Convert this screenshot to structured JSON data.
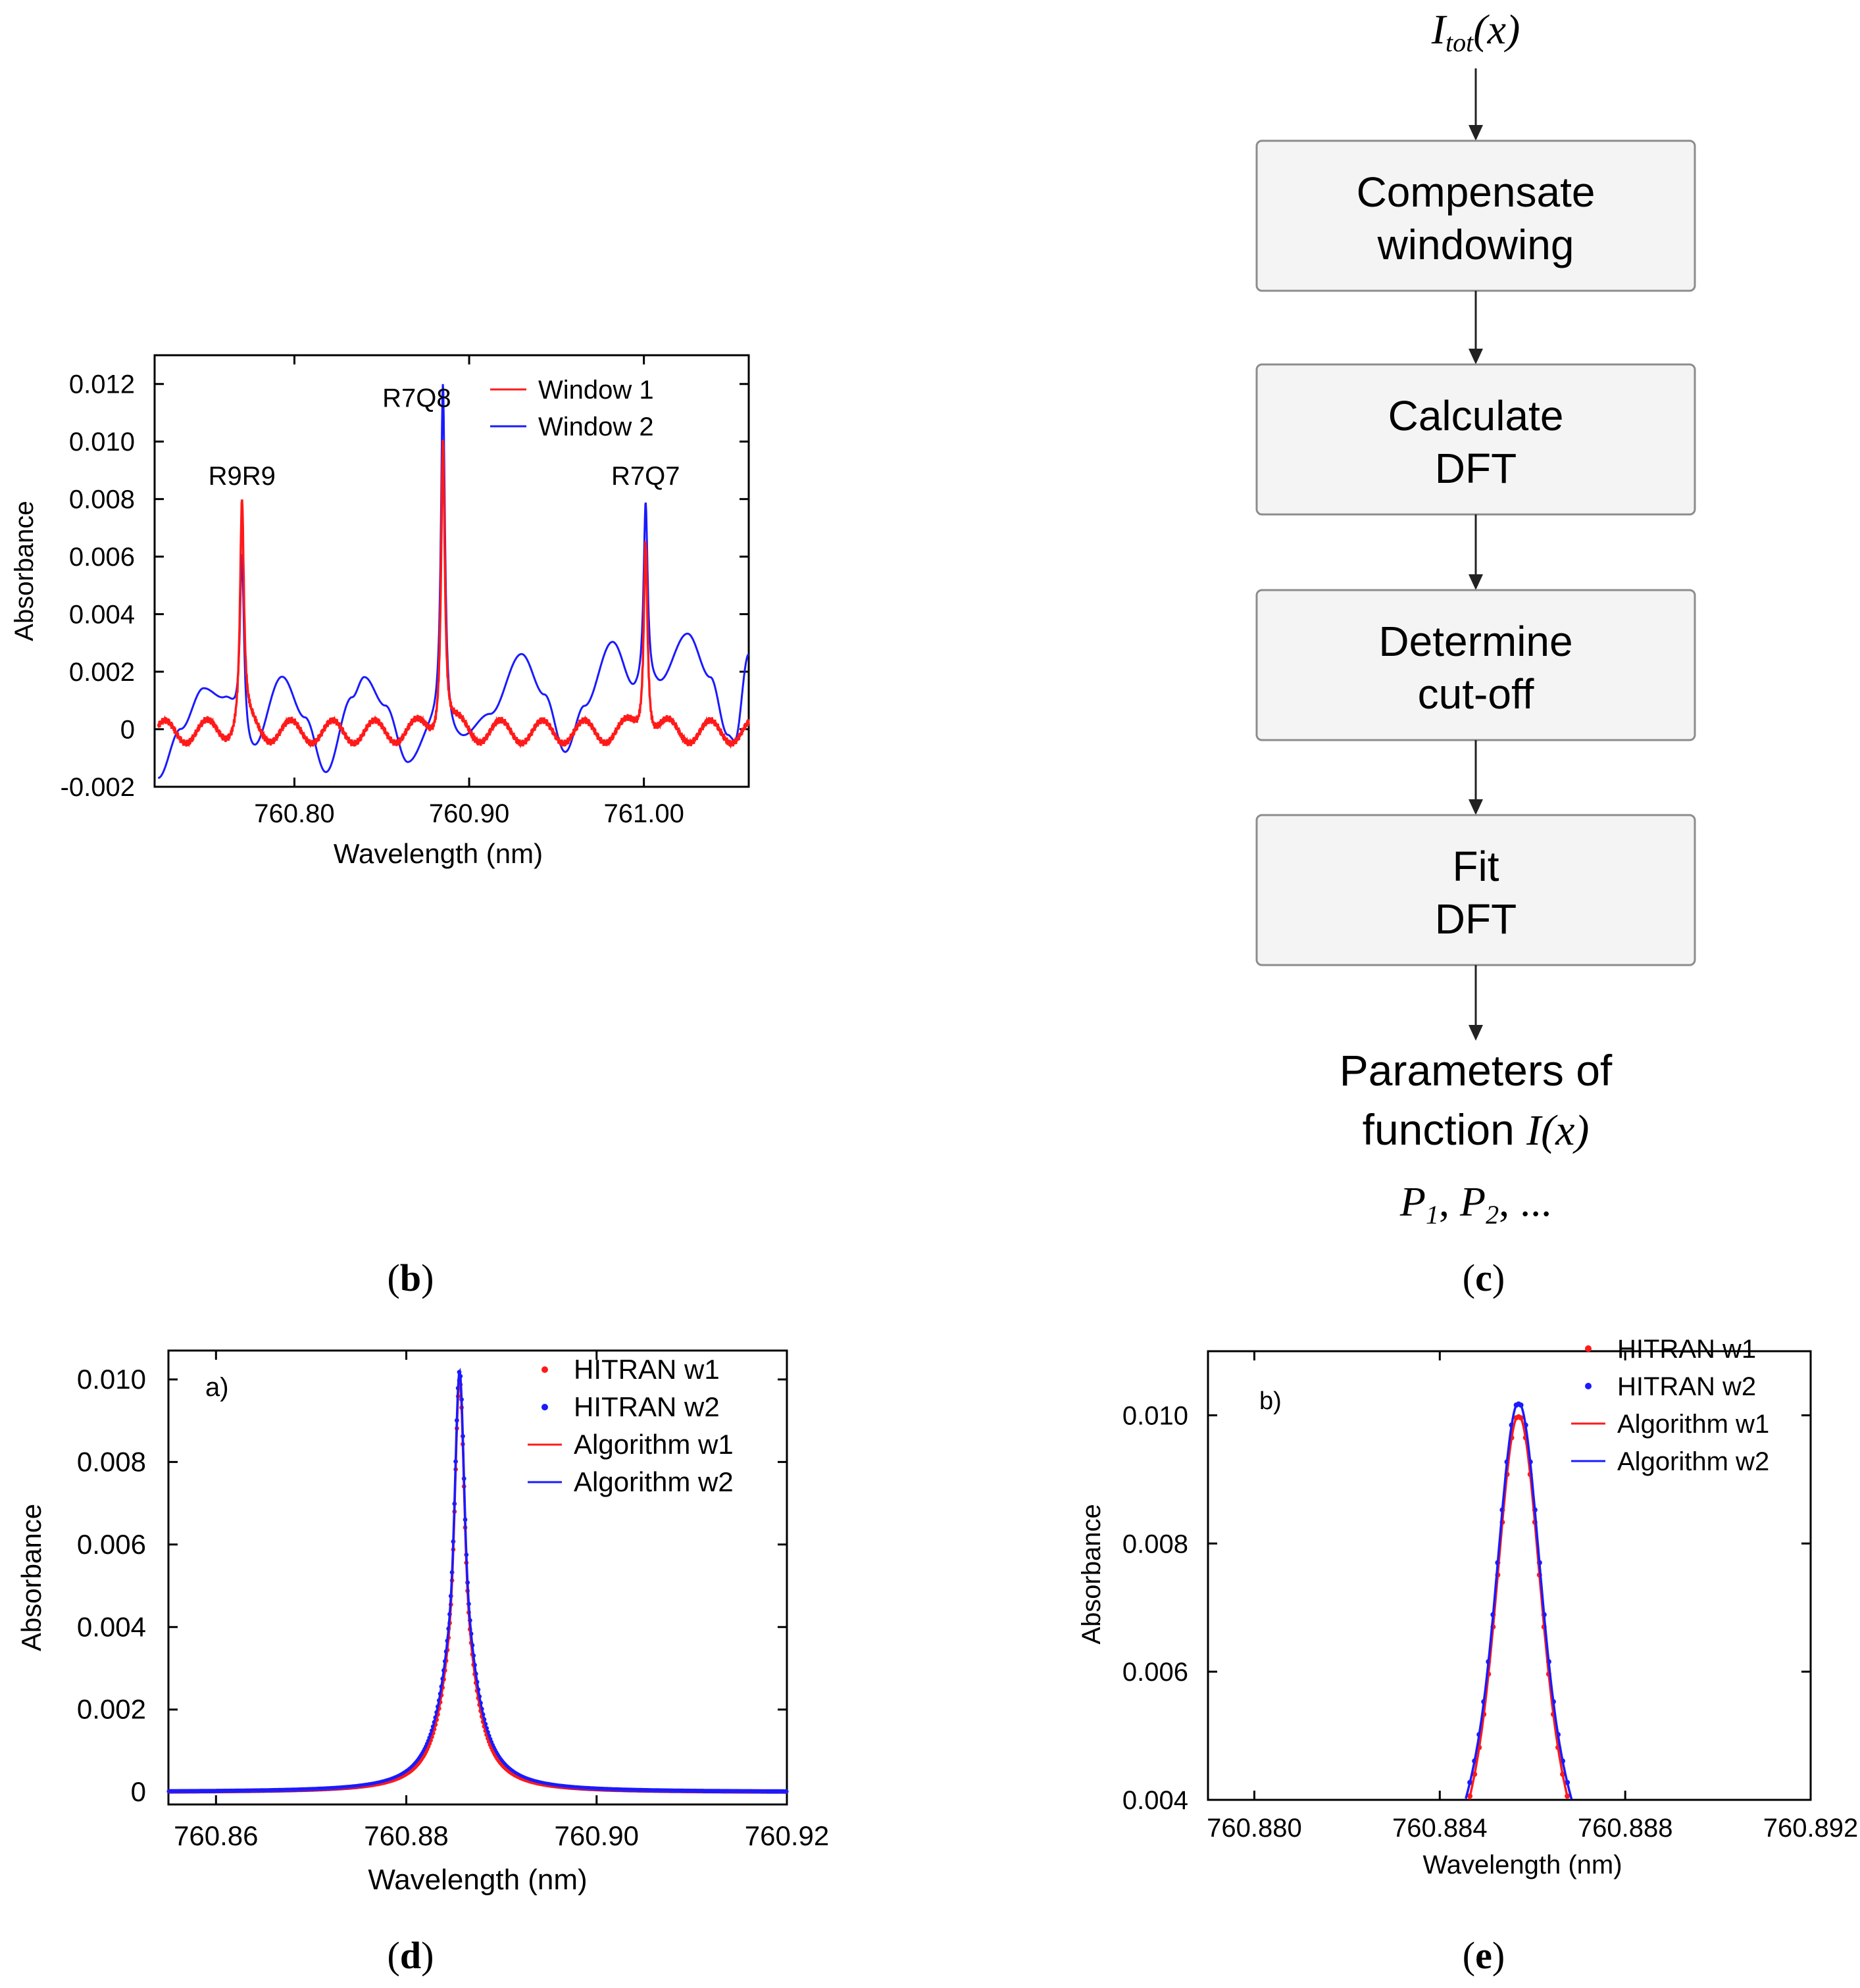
{
  "colors": {
    "red": "#ff1a1a",
    "blue": "#1a1aff",
    "axis": "#000000",
    "box_border": "#8c8c8c",
    "box_fill": "#f4f4f4"
  },
  "captions": {
    "b": "b",
    "c": "c",
    "d": "d",
    "e": "e"
  },
  "chart_data": [
    {
      "id": "b",
      "type": "line",
      "xlabel": "Wavelength (nm)",
      "ylabel": "Absorbance",
      "xlim": [
        760.72,
        761.06
      ],
      "ylim": [
        -0.002,
        0.013
      ],
      "x_ticks": [
        760.8,
        760.9,
        761.0
      ],
      "x_tick_labels": [
        "760.80",
        "760.90",
        "761.00"
      ],
      "y_ticks": [
        -0.002,
        0,
        0.002,
        0.004,
        0.006,
        0.008,
        0.01,
        0.012
      ],
      "y_tick_labels": [
        "-0.002",
        "0",
        "0.002",
        "0.004",
        "0.006",
        "0.008",
        "0.010",
        "0.012"
      ],
      "legend": [
        "Window 1",
        "Window 2"
      ],
      "legend_position": "top-right",
      "annotations": [
        {
          "text": "R9R9",
          "x": 760.77,
          "y": 0.0085
        },
        {
          "text": "R7Q8",
          "x": 760.87,
          "y": 0.0112
        },
        {
          "text": "R7Q7",
          "x": 761.001,
          "y": 0.0085
        }
      ],
      "peaks": [
        {
          "x": 760.77,
          "window1": 0.0078,
          "window2": 0.0061
        },
        {
          "x": 760.885,
          "window1": 0.0103,
          "window2": 0.012
        },
        {
          "x": 761.001,
          "window1": 0.0069,
          "window2": 0.0079
        }
      ],
      "series": [
        {
          "name": "Window 1",
          "color": "red",
          "baseline_oscillation": {
            "amplitude": 0.0004,
            "period_nm": 0.024,
            "offset": -0.0001
          }
        },
        {
          "name": "Window 2",
          "color": "blue",
          "baseline_points": [
            [
              760.722,
              -0.0017
            ],
            [
              760.735,
              0.0
            ],
            [
              760.748,
              0.0014
            ],
            [
              760.76,
              0.001
            ],
            [
              760.776,
              -0.0008
            ],
            [
              760.793,
              0.0018
            ],
            [
              760.806,
              0.0004
            ],
            [
              760.818,
              -0.0015
            ],
            [
              760.833,
              0.0011
            ],
            [
              760.84,
              0.0018
            ],
            [
              760.852,
              0.0008
            ],
            [
              760.865,
              -0.0012
            ],
            [
              760.88,
              0.0
            ],
            [
              760.895,
              -0.0004
            ],
            [
              760.912,
              0.0005
            ],
            [
              760.93,
              0.0026
            ],
            [
              760.943,
              0.0012
            ],
            [
              760.955,
              -0.0008
            ],
            [
              760.966,
              0.0008
            ],
            [
              760.982,
              0.003
            ],
            [
              760.995,
              0.0013
            ],
            [
              761.008,
              0.0015
            ],
            [
              761.025,
              0.0033
            ],
            [
              761.038,
              0.0018
            ],
            [
              761.048,
              -0.0002
            ],
            [
              761.052,
              -0.0004
            ],
            [
              761.06,
              0.0026
            ]
          ]
        }
      ]
    },
    {
      "id": "c",
      "type": "flowchart",
      "input_label": "I",
      "input_sub": "tot",
      "input_arg": "(x)",
      "steps": [
        {
          "line1": "Compensate",
          "line2": "windowing"
        },
        {
          "line1": "Calculate",
          "line2": "DFT"
        },
        {
          "line1": "Determine",
          "line2": "cut-off"
        },
        {
          "line1": "Fit",
          "line2": "DFT"
        }
      ],
      "output": {
        "line1": "Parameters of",
        "line2_text": "function ",
        "line2_math": "I(x)",
        "p": "P",
        "sub1": "1",
        "sub2": "2",
        "comma": ", ",
        "ellipsis": ", ..."
      }
    },
    {
      "id": "d",
      "type": "line",
      "panel_label": "a)",
      "xlabel": "Wavelength (nm)",
      "ylabel": "Absorbance",
      "xlim": [
        760.855,
        760.92
      ],
      "ylim": [
        -0.0003,
        0.0107
      ],
      "x_ticks": [
        760.86,
        760.88,
        760.9,
        760.92
      ],
      "x_tick_labels": [
        "760.86",
        "760.88",
        "760.90",
        "760.92"
      ],
      "y_ticks": [
        0,
        0.002,
        0.004,
        0.006,
        0.008,
        0.01
      ],
      "y_tick_labels": [
        "0",
        "0.002",
        "0.004",
        "0.006",
        "0.008",
        "0.010"
      ],
      "legend": [
        "HITRAN w1",
        "HITRAN w2",
        "Algorithm w1",
        "Algorithm w2"
      ],
      "legend_position": "top-right",
      "series": [
        {
          "name": "HITRAN w1",
          "style": "dots",
          "color": "red",
          "center": 760.8856,
          "peak": 0.01,
          "hwhm": 0.00165,
          "gauss_sigma": 0.0004
        },
        {
          "name": "HITRAN w2",
          "style": "dots",
          "color": "blue",
          "center": 760.8856,
          "peak": 0.0102,
          "hwhm": 0.00175,
          "gauss_sigma": 0.0004
        },
        {
          "name": "Algorithm w1",
          "style": "line",
          "color": "red",
          "center": 760.8856,
          "peak": 0.01,
          "hwhm": 0.00165,
          "gauss_sigma": 0.0004
        },
        {
          "name": "Algorithm w2",
          "style": "line",
          "color": "blue",
          "center": 760.8856,
          "peak": 0.0102,
          "hwhm": 0.00175,
          "gauss_sigma": 0.0004
        }
      ]
    },
    {
      "id": "e",
      "type": "line",
      "panel_label": "b)",
      "xlabel": "Wavelength (nm)",
      "ylabel": "Absorbance",
      "xlim": [
        760.879,
        760.892
      ],
      "ylim": [
        0.004,
        0.011
      ],
      "x_ticks": [
        760.88,
        760.884,
        760.888,
        760.892
      ],
      "x_tick_labels": [
        "760.880",
        "760.884",
        "760.888",
        "760.892"
      ],
      "y_ticks": [
        0.004,
        0.006,
        0.008,
        0.01
      ],
      "y_tick_labels": [
        "0.004",
        "0.006",
        "0.008",
        "0.010"
      ],
      "legend": [
        "HITRAN w1",
        "HITRAN w2",
        "Algorithm w1",
        "Algorithm w2"
      ],
      "legend_position": "top-right",
      "series": [
        {
          "name": "HITRAN w1",
          "style": "dots",
          "color": "red",
          "center": 760.8857,
          "peak": 0.01,
          "hwhm": 0.00165,
          "gauss_sigma": 0.0004
        },
        {
          "name": "HITRAN w2",
          "style": "dots",
          "color": "blue",
          "center": 760.8857,
          "peak": 0.0102,
          "hwhm": 0.00175,
          "gauss_sigma": 0.0004
        },
        {
          "name": "Algorithm w1",
          "style": "line",
          "color": "red",
          "center": 760.8857,
          "peak": 0.01,
          "hwhm": 0.00165,
          "gauss_sigma": 0.0004
        },
        {
          "name": "Algorithm w2",
          "style": "line",
          "color": "blue",
          "center": 760.8857,
          "peak": 0.0102,
          "hwhm": 0.00175,
          "gauss_sigma": 0.0004
        }
      ]
    }
  ]
}
